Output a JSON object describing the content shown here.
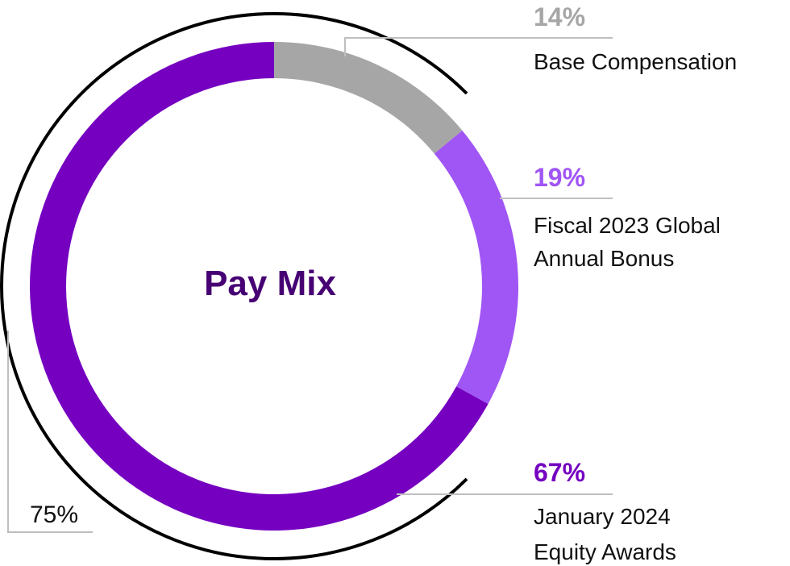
{
  "chart_data": {
    "type": "pie",
    "title": "Pay Mix",
    "slices": [
      {
        "name": "Base Compensation",
        "label_lines": [
          "Base Compensation"
        ],
        "value": 14,
        "value_label": "14%",
        "color": "#a6a6a6"
      },
      {
        "name": "Fiscal 2023 Global Annual Bonus",
        "label_lines": [
          "Fiscal 2023 Global",
          "Annual Bonus"
        ],
        "value": 19,
        "value_label": "19%",
        "color": "#a055f5"
      },
      {
        "name": "January 2024 Equity Awards",
        "label_lines": [
          "January 2024",
          "Equity Awards"
        ],
        "value": 67,
        "value_label": "67%",
        "color": "#7500c0"
      }
    ],
    "bracket_total": {
      "value": 75,
      "label": "75%"
    },
    "colors": {
      "title": "#460073",
      "leader_line": "#bfbfbf",
      "bracket": "#000000"
    }
  }
}
